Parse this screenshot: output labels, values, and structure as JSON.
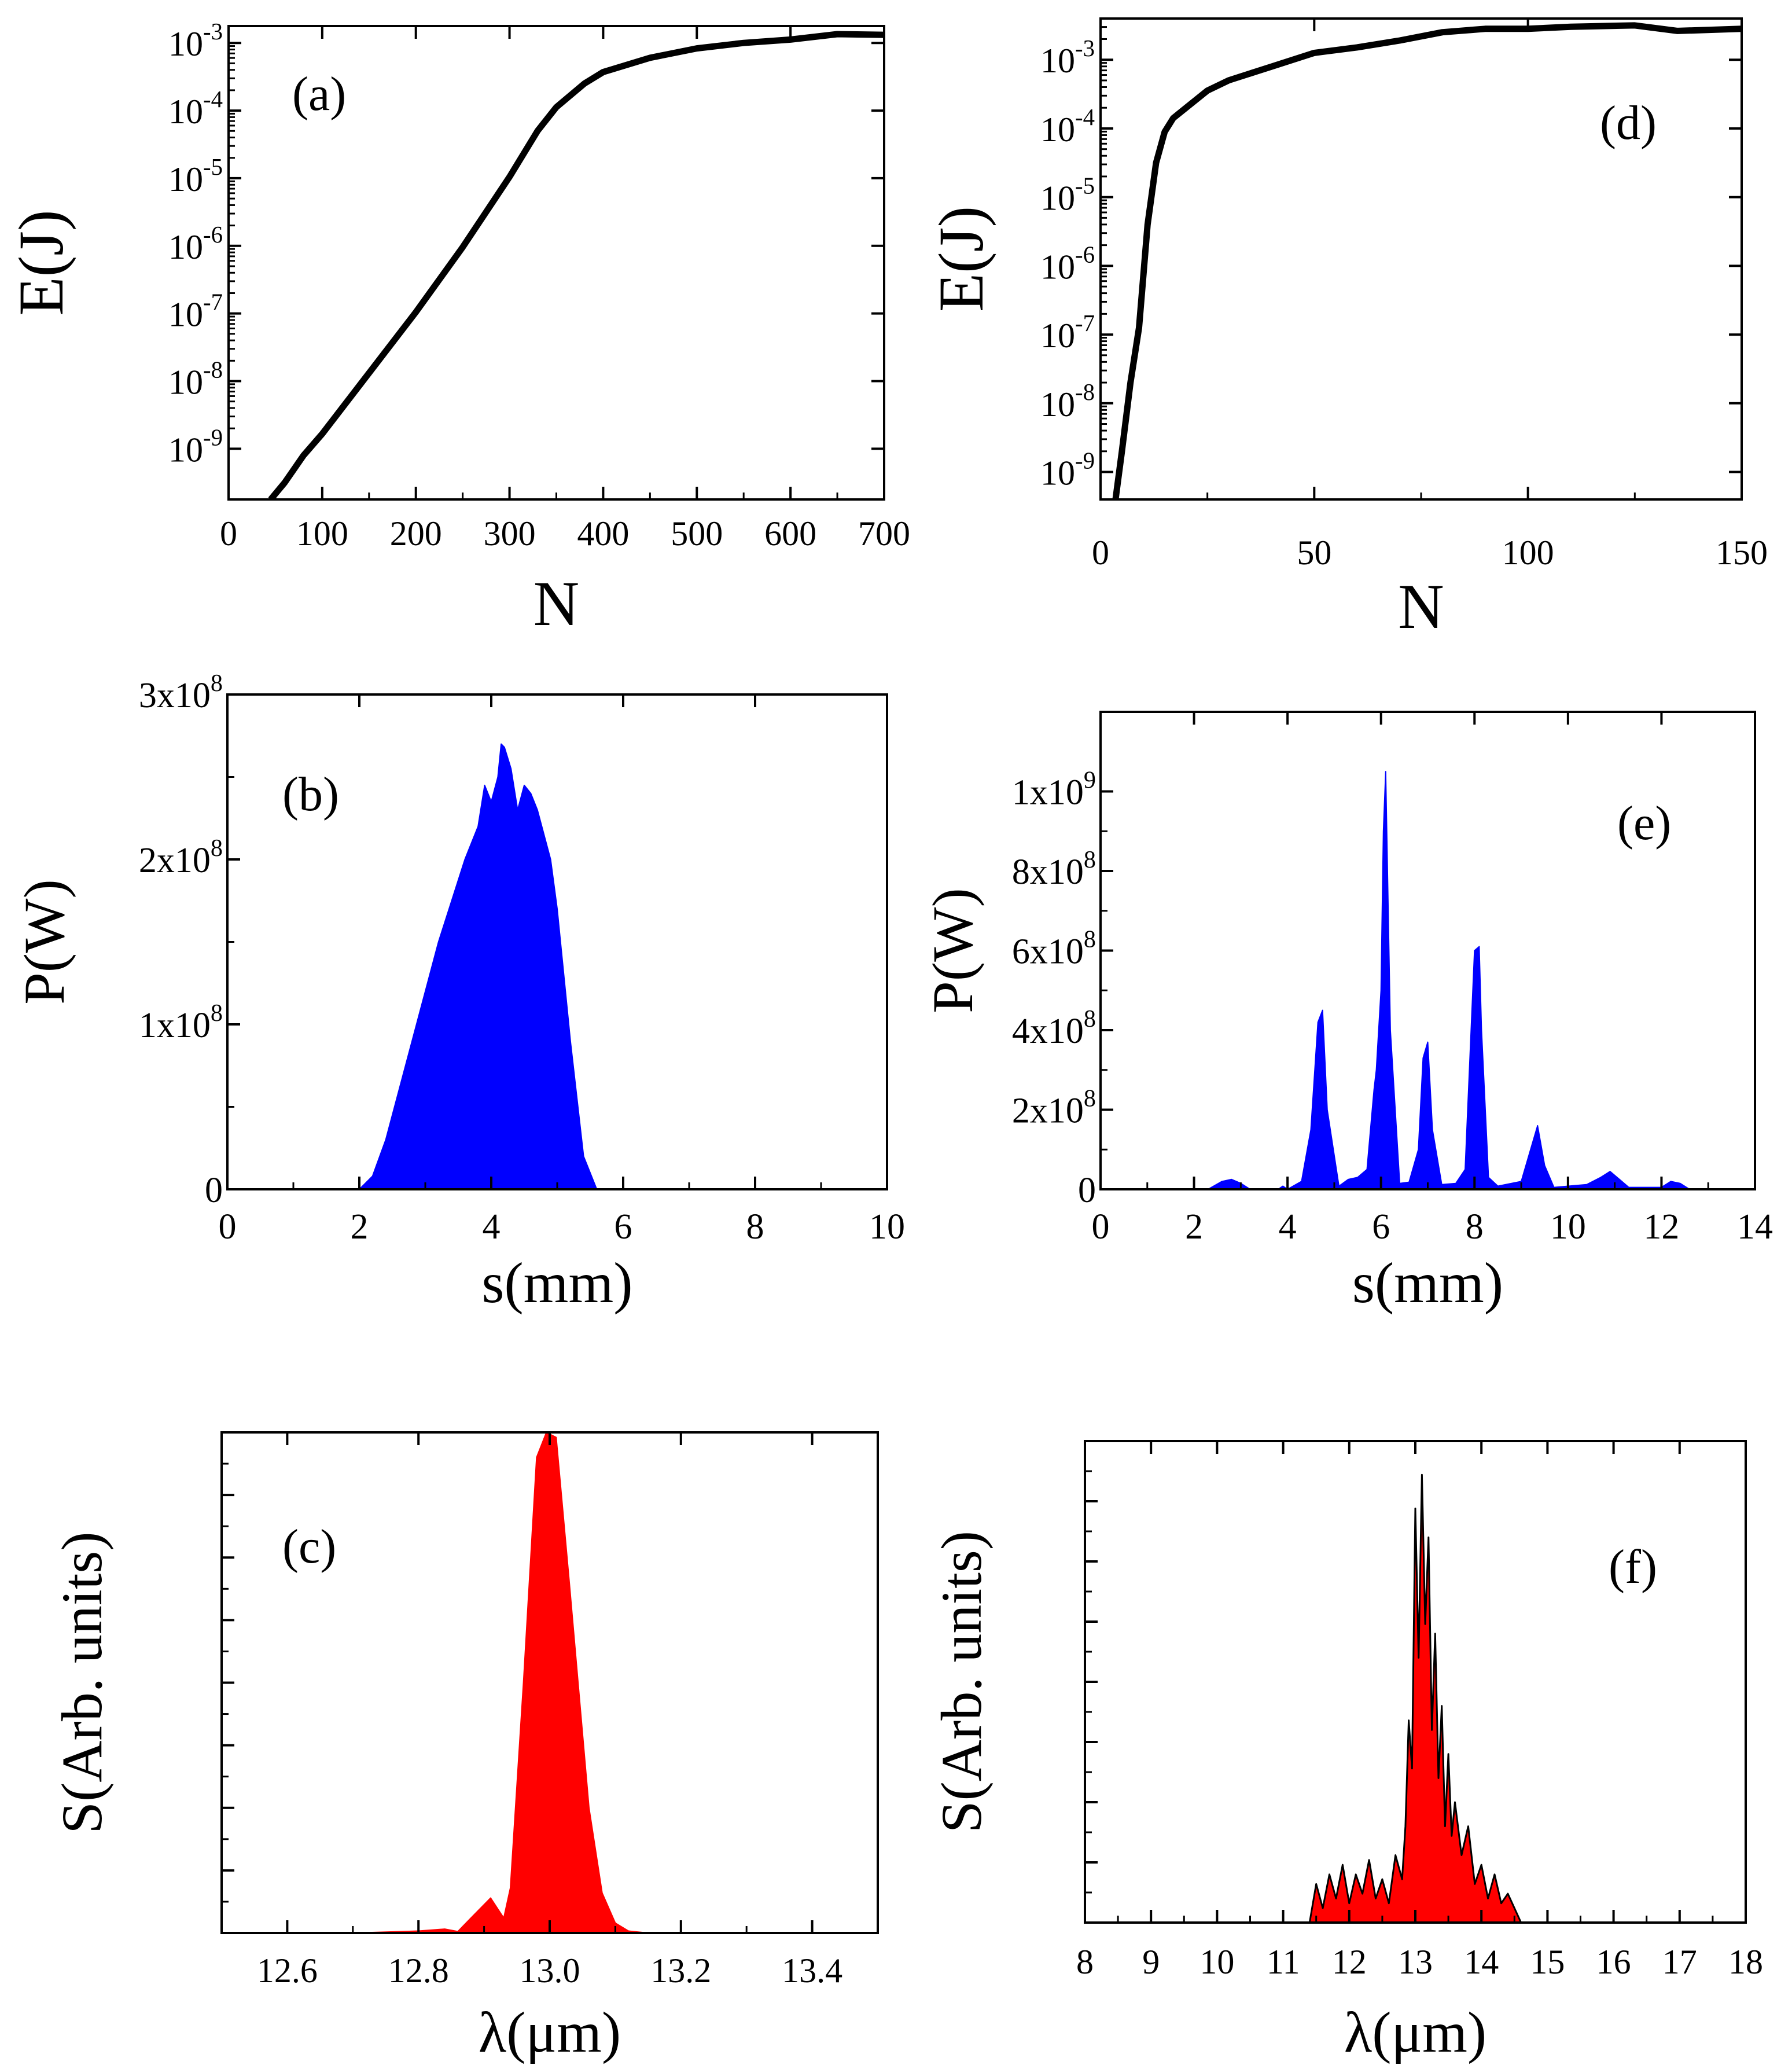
{
  "chart_data": [
    {
      "id": "a",
      "type": "line",
      "panel_label": "(a)",
      "xlabel": "N",
      "ylabel": "E(J)",
      "yscale": "log",
      "xlim": [
        0,
        700
      ],
      "ylim_log10": [
        -9.75,
        -2.75
      ],
      "xticks": [
        "0",
        "100",
        "200",
        "300",
        "400",
        "500",
        "600",
        "700"
      ],
      "xtick_values": [
        0,
        100,
        200,
        300,
        400,
        500,
        600,
        700
      ],
      "ytick_exponents": [
        "-9",
        "-8",
        "-7",
        "-6",
        "-5",
        "-4",
        "-3"
      ],
      "ytick_values_log10": [
        -9,
        -8,
        -7,
        -6,
        -5,
        -4,
        -3
      ],
      "ytick_base": "10",
      "line_color": "#000000",
      "x": [
        45,
        60,
        80,
        100,
        150,
        200,
        250,
        300,
        330,
        350,
        380,
        400,
        450,
        500,
        550,
        600,
        650,
        700
      ],
      "y_log10": [
        -9.75,
        -9.5,
        -9.1,
        -8.78,
        -7.88,
        -6.98,
        -6.02,
        -4.98,
        -4.3,
        -3.95,
        -3.6,
        -3.43,
        -3.22,
        -3.08,
        -3.0,
        -2.95,
        -2.87,
        -2.88
      ]
    },
    {
      "id": "d",
      "type": "line",
      "panel_label": "(d)",
      "xlabel": "N",
      "ylabel": "E(J)",
      "yscale": "log",
      "xlim": [
        0,
        150
      ],
      "ylim_log10": [
        -9.4,
        -2.4
      ],
      "xticks": [
        "0",
        "50",
        "100",
        "150"
      ],
      "xtick_values": [
        0,
        50,
        100,
        150
      ],
      "ytick_exponents": [
        "-9",
        "-8",
        "-7",
        "-6",
        "-5",
        "-4",
        "-3"
      ],
      "ytick_values_log10": [
        -9,
        -8,
        -7,
        -6,
        -5,
        -4,
        -3
      ],
      "ytick_base": "10",
      "line_color": "#000000",
      "x": [
        3.5,
        5,
        7,
        9,
        11,
        13,
        15,
        17,
        20,
        25,
        30,
        40,
        50,
        60,
        70,
        80,
        90,
        100,
        110,
        125,
        135,
        150
      ],
      "y_log10": [
        -9.4,
        -8.7,
        -7.7,
        -6.9,
        -5.4,
        -4.5,
        -4.05,
        -3.85,
        -3.7,
        -3.45,
        -3.3,
        -3.1,
        -2.9,
        -2.82,
        -2.72,
        -2.6,
        -2.55,
        -2.55,
        -2.52,
        -2.5,
        -2.58,
        -2.55
      ]
    },
    {
      "id": "b",
      "type": "area",
      "panel_label": "(b)",
      "xlabel": "s(mm)",
      "ylabel": "P(W)",
      "xlim": [
        0,
        10
      ],
      "ylim": [
        0,
        300000000
      ],
      "xticks": [
        "0",
        "2",
        "4",
        "6",
        "8",
        "10"
      ],
      "xtick_values": [
        0,
        2,
        4,
        6,
        8,
        10
      ],
      "yticks": [
        {
          "value": 0,
          "mantissa": "0",
          "exponent": ""
        },
        {
          "value": 100000000,
          "mantissa": "1x10",
          "exponent": "8"
        },
        {
          "value": 200000000,
          "mantissa": "2x10",
          "exponent": "8"
        },
        {
          "value": 300000000,
          "mantissa": "3x10",
          "exponent": "8"
        }
      ],
      "fill_color": "#0000ff",
      "x": [
        2.0,
        2.2,
        2.4,
        2.6,
        2.8,
        3.0,
        3.2,
        3.4,
        3.6,
        3.8,
        3.9,
        4.0,
        4.1,
        4.15,
        4.2,
        4.3,
        4.4,
        4.5,
        4.6,
        4.7,
        4.8,
        4.9,
        5.0,
        5.2,
        5.4,
        5.6
      ],
      "values": [
        0,
        8000000,
        30000000,
        60000000,
        90000000,
        120000000,
        150000000,
        175000000,
        200000000,
        220000000,
        245000000,
        235000000,
        250000000,
        270000000,
        268000000,
        255000000,
        230000000,
        245000000,
        240000000,
        230000000,
        215000000,
        200000000,
        170000000,
        90000000,
        20000000,
        0
      ]
    },
    {
      "id": "e",
      "type": "area",
      "panel_label": "(e)",
      "xlabel": "s(mm)",
      "ylabel": "P(W)",
      "xlim": [
        0,
        14
      ],
      "ylim": [
        0,
        1200000000
      ],
      "xticks": [
        "0",
        "2",
        "4",
        "6",
        "8",
        "10",
        "12",
        "14"
      ],
      "xtick_values": [
        0,
        2,
        4,
        6,
        8,
        10,
        12,
        14
      ],
      "yticks": [
        {
          "value": 0,
          "mantissa": "0",
          "exponent": ""
        },
        {
          "value": 200000000,
          "mantissa": "2x10",
          "exponent": "8"
        },
        {
          "value": 400000000,
          "mantissa": "4x10",
          "exponent": "8"
        },
        {
          "value": 600000000,
          "mantissa": "6x10",
          "exponent": "8"
        },
        {
          "value": 800000000,
          "mantissa": "8x10",
          "exponent": "8"
        },
        {
          "value": 1000000000,
          "mantissa": "1x10",
          "exponent": "9"
        }
      ],
      "fill_color": "#0000ff",
      "x": [
        2.3,
        2.6,
        2.8,
        3.0,
        3.2,
        3.8,
        3.9,
        4.0,
        4.3,
        4.5,
        4.65,
        4.75,
        4.85,
        5.1,
        5.3,
        5.5,
        5.7,
        5.85,
        5.9,
        6.0,
        6.05,
        6.1,
        6.2,
        6.4,
        6.6,
        6.8,
        6.9,
        7.0,
        7.1,
        7.3,
        7.6,
        7.8,
        8.0,
        8.1,
        8.15,
        8.3,
        8.5,
        9.0,
        9.2,
        9.35,
        9.5,
        9.7,
        10.4,
        10.7,
        10.9,
        11.1,
        11.3,
        12.0,
        12.2,
        12.4,
        12.6
      ],
      "values": [
        0,
        20000000,
        25000000,
        15000000,
        0,
        0,
        8000000,
        0,
        20000000,
        150000000,
        420000000,
        450000000,
        200000000,
        8000000,
        25000000,
        30000000,
        50000000,
        250000000,
        300000000,
        500000000,
        900000000,
        1050000000,
        400000000,
        15000000,
        18000000,
        100000000,
        330000000,
        370000000,
        150000000,
        12000000,
        15000000,
        50000000,
        600000000,
        610000000,
        400000000,
        30000000,
        8000000,
        20000000,
        100000000,
        160000000,
        60000000,
        5000000,
        12000000,
        30000000,
        45000000,
        25000000,
        5000000,
        5000000,
        20000000,
        15000000,
        0
      ]
    },
    {
      "id": "c",
      "type": "area",
      "panel_label": "(c)",
      "xlabel": "λ(μm)",
      "ylabel": "S(Arb. units)",
      "xlim": [
        12.5,
        13.5
      ],
      "ylim": [
        0,
        1.0
      ],
      "xticks": [
        "12.6",
        "12.8",
        "13.0",
        "13.2",
        "13.4"
      ],
      "xtick_values": [
        12.6,
        12.8,
        13.0,
        13.2,
        13.4
      ],
      "fill_color": "#ff0000",
      "x": [
        12.7,
        12.8,
        12.84,
        12.86,
        12.88,
        12.91,
        12.93,
        12.94,
        12.96,
        12.98,
        12.995,
        13.01,
        13.03,
        13.06,
        13.08,
        13.1,
        13.12,
        13.15
      ],
      "values": [
        0,
        0.004,
        0.008,
        0.003,
        0.03,
        0.07,
        0.03,
        0.09,
        0.5,
        0.95,
        1.0,
        0.99,
        0.7,
        0.25,
        0.08,
        0.02,
        0.004,
        0
      ]
    },
    {
      "id": "f",
      "type": "area",
      "panel_label": "(f)",
      "xlabel": "λ(μm)",
      "ylabel": "S(Arb. units)",
      "xlim": [
        8,
        18
      ],
      "ylim": [
        0,
        1.0
      ],
      "xticks": [
        "8",
        "9",
        "10",
        "11",
        "12",
        "13",
        "14",
        "15",
        "16",
        "17",
        "18"
      ],
      "xtick_values": [
        8,
        9,
        10,
        11,
        12,
        13,
        14,
        15,
        16,
        17,
        18
      ],
      "fill_color": "#ff0000",
      "outline_color": "#000000",
      "x": [
        11.4,
        11.5,
        11.6,
        11.7,
        11.8,
        11.9,
        12.0,
        12.1,
        12.2,
        12.3,
        12.4,
        12.5,
        12.6,
        12.7,
        12.8,
        12.85,
        12.9,
        12.95,
        13.0,
        13.05,
        13.1,
        13.15,
        13.2,
        13.25,
        13.3,
        13.35,
        13.4,
        13.45,
        13.5,
        13.55,
        13.6,
        13.7,
        13.8,
        13.9,
        14.0,
        14.1,
        14.2,
        14.3,
        14.4,
        14.5,
        14.6
      ],
      "values": [
        0,
        0.08,
        0.03,
        0.1,
        0.05,
        0.12,
        0.04,
        0.1,
        0.06,
        0.13,
        0.05,
        0.09,
        0.04,
        0.14,
        0.09,
        0.2,
        0.42,
        0.32,
        0.86,
        0.55,
        0.93,
        0.62,
        0.8,
        0.4,
        0.6,
        0.3,
        0.45,
        0.2,
        0.35,
        0.18,
        0.25,
        0.14,
        0.2,
        0.08,
        0.12,
        0.05,
        0.1,
        0.04,
        0.06,
        0.03,
        0
      ]
    }
  ]
}
